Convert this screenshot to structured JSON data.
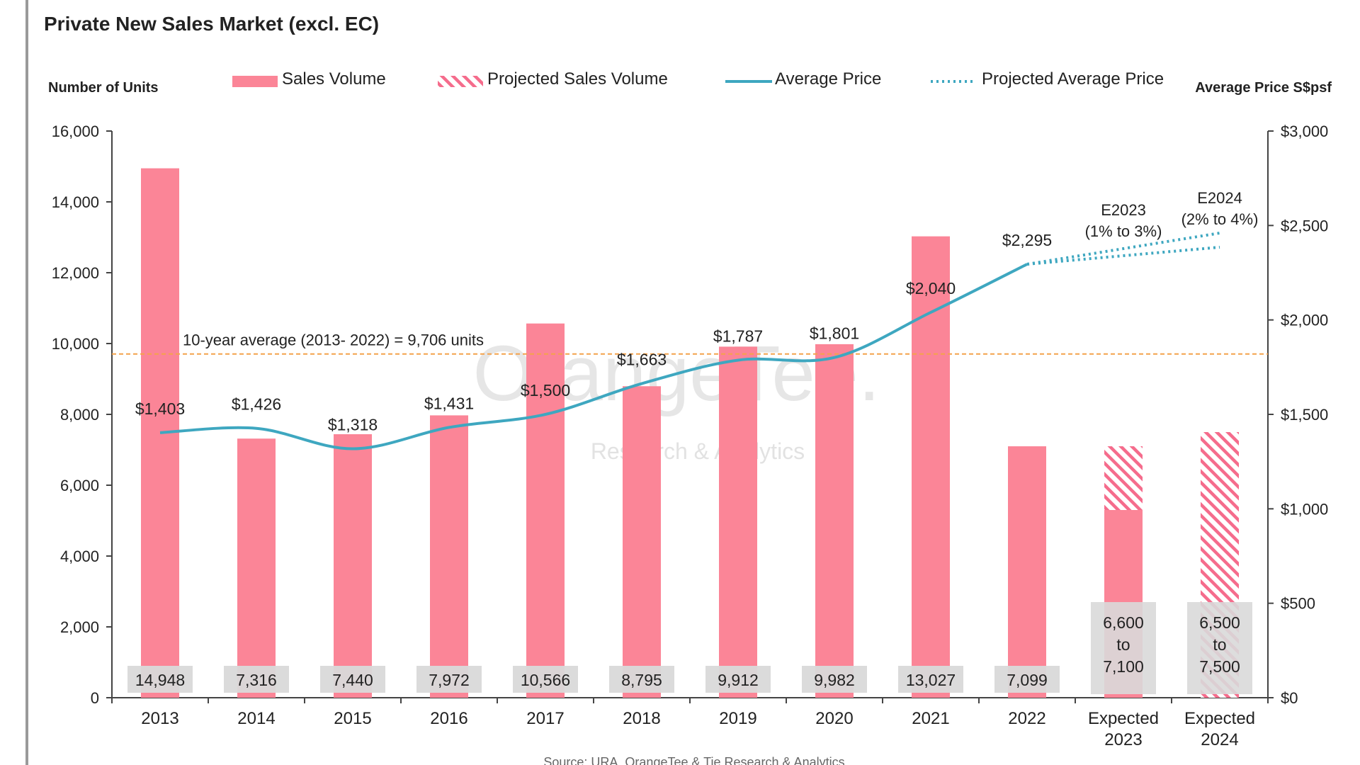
{
  "chart_data": {
    "type": "bar",
    "title": "Private New Sales Market (excl. EC)",
    "ylabel_left": "Number of Units",
    "ylabel_right": "Average Price S$psf",
    "categories": [
      "2013",
      "2014",
      "2015",
      "2016",
      "2017",
      "2018",
      "2019",
      "2020",
      "2021",
      "2022",
      "Expected 2023",
      "Expected 2024"
    ],
    "category_lines": [
      [
        "2013"
      ],
      [
        "2014"
      ],
      [
        "2015"
      ],
      [
        "2016"
      ],
      [
        "2017"
      ],
      [
        "2018"
      ],
      [
        "2019"
      ],
      [
        "2020"
      ],
      [
        "2021"
      ],
      [
        "2022"
      ],
      [
        "Expected",
        "2023"
      ],
      [
        "Expected",
        "2024"
      ]
    ],
    "left_axis": {
      "min": 0,
      "max": 16000,
      "ticks": [
        "0",
        "2,000",
        "4,000",
        "6,000",
        "8,000",
        "10,000",
        "12,000",
        "14,000",
        "16,000"
      ]
    },
    "right_axis": {
      "min": 0,
      "max": 3000,
      "ticks": [
        "$0",
        "$500",
        "$1,000",
        "$1,500",
        "$2,000",
        "$2,500",
        "$3,000"
      ]
    },
    "legend": [
      "Sales Volume",
      "Projected Sales Volume",
      "Average Price",
      "Projected Average Price"
    ],
    "series": [
      {
        "name": "Sales Volume",
        "values": [
          14948,
          7316,
          7440,
          7972,
          10566,
          8795,
          9912,
          9982,
          13027,
          7099,
          5300,
          null
        ]
      },
      {
        "name": "Projected Sales Volume",
        "low": [
          null,
          null,
          null,
          null,
          null,
          null,
          null,
          null,
          null,
          null,
          5300,
          null
        ],
        "high": [
          null,
          null,
          null,
          null,
          null,
          null,
          null,
          null,
          null,
          null,
          7100,
          7500
        ]
      },
      {
        "name": "Average Price",
        "values": [
          1403,
          1426,
          1318,
          1431,
          1500,
          1663,
          1787,
          1801,
          2040,
          2295,
          null,
          null
        ]
      },
      {
        "name": "Projected Average Price",
        "from_year_value": 2295,
        "upper_2024": 2460,
        "lower_2024": 2385
      }
    ],
    "volume_labels": [
      [
        "14,948"
      ],
      [
        "7,316"
      ],
      [
        "7,440"
      ],
      [
        "7,972"
      ],
      [
        "10,566"
      ],
      [
        "8,795"
      ],
      [
        "9,912"
      ],
      [
        "9,982"
      ],
      [
        "13,027"
      ],
      [
        "7,099"
      ],
      [
        "6,600",
        "to",
        "7,100"
      ],
      [
        "6,500",
        "to",
        "7,500"
      ]
    ],
    "price_labels": [
      "$1,403",
      "$1,426",
      "$1,318",
      "$1,431",
      "$1,500",
      "$1,663",
      "$1,787",
      "$1,801",
      "$2,040",
      "$2,295"
    ],
    "projection_labels": [
      {
        "lines": [
          "E2023",
          "(1% to 3%)"
        ]
      },
      {
        "lines": [
          "E2024",
          "(2% to 4%)"
        ]
      }
    ],
    "average_line": {
      "value": 9706,
      "label": "10-year average (2013- 2022) = 9,706 units"
    },
    "watermark": [
      "OrangeTee.",
      "Research & Analytics"
    ],
    "source": "Source: URA, OrangeTee & Tie Research & Analytics",
    "colors": {
      "bar": "#fb8597",
      "hatch": "#f56c8c",
      "line": "#3ea7c0",
      "avgline": "#f4a24b",
      "label_box": "#d9d9d9",
      "text": "#222222"
    }
  }
}
